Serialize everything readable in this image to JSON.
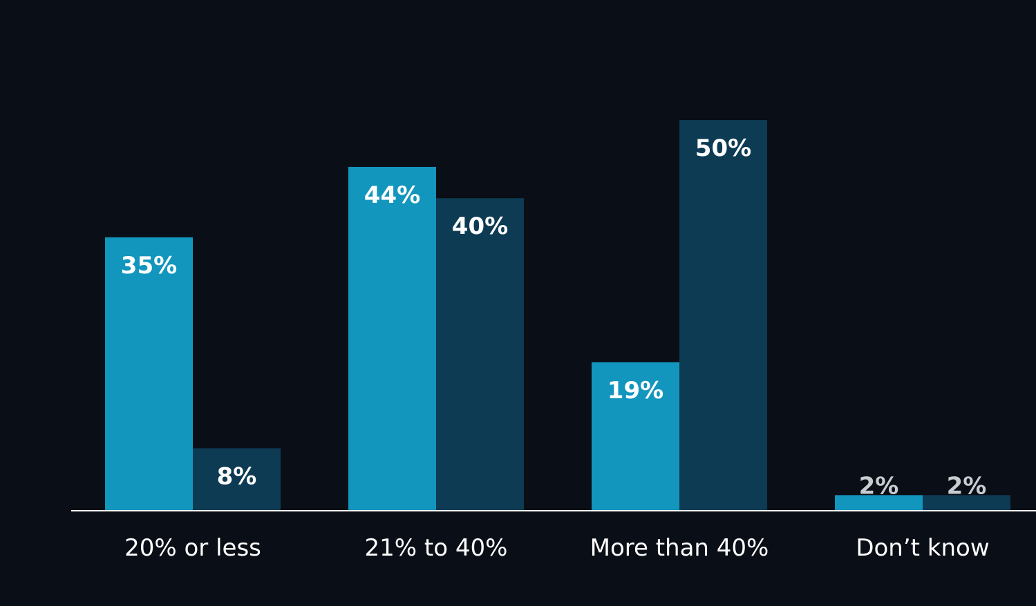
{
  "chart_data": {
    "type": "bar",
    "title": "",
    "xlabel": "",
    "ylabel": "",
    "ylim": [
      0,
      55
    ],
    "grid": false,
    "legend_placement": "top",
    "categories": [
      "20% or less",
      "21% to 40%",
      "More than 40%",
      "Don’t know"
    ],
    "series": [
      {
        "color": "#1396bd",
        "values": [
          35,
          44,
          19,
          2
        ],
        "labels": [
          "35%",
          "44%",
          "19%",
          "2%"
        ]
      },
      {
        "color": "#0d3b54",
        "values": [
          8,
          40,
          50,
          2
        ],
        "labels": [
          "8%",
          "40%",
          "50%",
          "2%"
        ]
      }
    ]
  },
  "colors": {
    "background": "#0a0e16",
    "axis": "#ffffff",
    "label_light": "#ffffff",
    "label_muted": "#c8ccd1"
  }
}
